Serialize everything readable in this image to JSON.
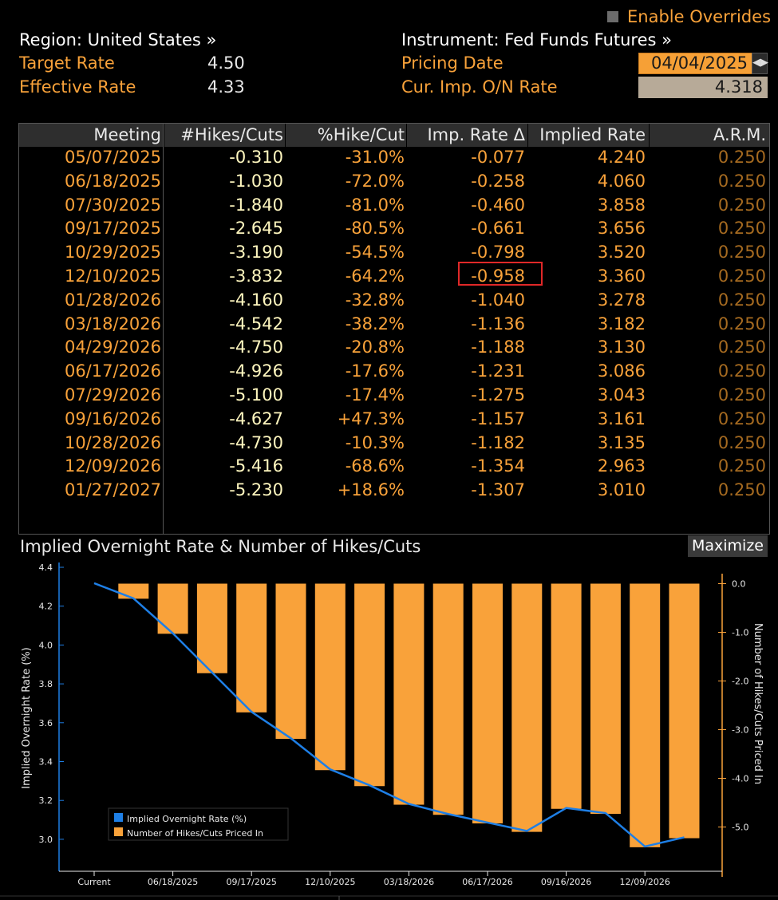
{
  "header": {
    "enable_overrides": "Enable Overrides",
    "region": "Region: United States »",
    "instrument": "Instrument: Fed Funds Futures »",
    "target_rate_label": "Target Rate",
    "target_rate_value": "4.50",
    "effective_rate_label": "Effective Rate",
    "effective_rate_value": "4.33",
    "pricing_date_label": "Pricing Date",
    "pricing_date_value": "04/04/2025",
    "cur_rate_label": "Cur. Imp. O/N Rate",
    "cur_rate_value": "4.318"
  },
  "table": {
    "headers": [
      "Meeting",
      "#Hikes/Cuts",
      "%Hike/Cut",
      "Imp. Rate Δ",
      "Implied Rate",
      "A.R.M."
    ],
    "rows": [
      [
        "05/07/2025",
        "-0.310",
        "-31.0%",
        "-0.077",
        "4.240",
        "0.250"
      ],
      [
        "06/18/2025",
        "-1.030",
        "-72.0%",
        "-0.258",
        "4.060",
        "0.250"
      ],
      [
        "07/30/2025",
        "-1.840",
        "-81.0%",
        "-0.460",
        "3.858",
        "0.250"
      ],
      [
        "09/17/2025",
        "-2.645",
        "-80.5%",
        "-0.661",
        "3.656",
        "0.250"
      ],
      [
        "10/29/2025",
        "-3.190",
        "-54.5%",
        "-0.798",
        "3.520",
        "0.250"
      ],
      [
        "12/10/2025",
        "-3.832",
        "-64.2%",
        "-0.958",
        "3.360",
        "0.250"
      ],
      [
        "01/28/2026",
        "-4.160",
        "-32.8%",
        "-1.040",
        "3.278",
        "0.250"
      ],
      [
        "03/18/2026",
        "-4.542",
        "-38.2%",
        "-1.136",
        "3.182",
        "0.250"
      ],
      [
        "04/29/2026",
        "-4.750",
        "-20.8%",
        "-1.188",
        "3.130",
        "0.250"
      ],
      [
        "06/17/2026",
        "-4.926",
        "-17.6%",
        "-1.231",
        "3.086",
        "0.250"
      ],
      [
        "07/29/2026",
        "-5.100",
        "-17.4%",
        "-1.275",
        "3.043",
        "0.250"
      ],
      [
        "09/16/2026",
        "-4.627",
        "+47.3%",
        "-1.157",
        "3.161",
        "0.250"
      ],
      [
        "10/28/2026",
        "-4.730",
        "-10.3%",
        "-1.182",
        "3.135",
        "0.250"
      ],
      [
        "12/09/2026",
        "-5.416",
        "-68.6%",
        "-1.354",
        "2.963",
        "0.250"
      ],
      [
        "01/27/2027",
        "-5.230",
        "+18.6%",
        "-1.307",
        "3.010",
        "0.250"
      ]
    ]
  },
  "chart": {
    "title": "Implied Overnight Rate & Number of Hikes/Cuts",
    "maximize": "Maximize"
  },
  "chart_data": {
    "type": "bar",
    "x": [
      "Current",
      "05/07/2025",
      "06/18/2025",
      "07/30/2025",
      "09/17/2025",
      "10/29/2025",
      "12/10/2025",
      "01/28/2026",
      "03/18/2026",
      "04/29/2026",
      "06/17/2026",
      "07/29/2026",
      "09/16/2026",
      "10/28/2026",
      "12/09/2026",
      "01/27/2027"
    ],
    "x_tick_labels": [
      "Current",
      "06/18/2025",
      "09/17/2025",
      "12/10/2025",
      "03/18/2026",
      "06/17/2026",
      "09/16/2026",
      "12/09/2026"
    ],
    "x_tick_index": [
      0,
      2,
      4,
      6,
      8,
      10,
      12,
      14
    ],
    "series": [
      {
        "name": "Implied Overnight Rate (%)",
        "type": "line",
        "axis": "left",
        "color": "#1e7fe6",
        "values": [
          4.318,
          4.24,
          4.06,
          3.858,
          3.656,
          3.52,
          3.36,
          3.278,
          3.182,
          3.13,
          3.086,
          3.043,
          3.161,
          3.135,
          2.963,
          3.01
        ]
      },
      {
        "name": "Number of Hikes/Cuts Priced In",
        "type": "bar",
        "axis": "right",
        "color": "#f9a23a",
        "values": [
          null,
          -0.31,
          -1.03,
          -1.84,
          -2.645,
          -3.19,
          -3.832,
          -4.16,
          -4.542,
          -4.75,
          -4.926,
          -5.1,
          -4.627,
          -4.73,
          -5.416,
          -5.23
        ]
      }
    ],
    "ylabel": "Implied Overnight Rate (%)",
    "y2label": "Number of Hikes/Cuts Priced In",
    "ylim": [
      2.85,
      4.4
    ],
    "yticks": [
      "4.4",
      "4.2",
      "4.0",
      "3.8",
      "3.6",
      "3.4",
      "3.2",
      "3.0"
    ],
    "y2lim": [
      -5.85,
      0.25
    ],
    "y2ticks": [
      "0.0",
      "-1.0",
      "-2.0",
      "-3.0",
      "-4.0",
      "-5.0"
    ],
    "legend_position": "bottom-left",
    "grid": false
  },
  "colors": {
    "orange": "#f9a23a",
    "blue": "#1e7fe6",
    "highlight": "#e02828"
  }
}
